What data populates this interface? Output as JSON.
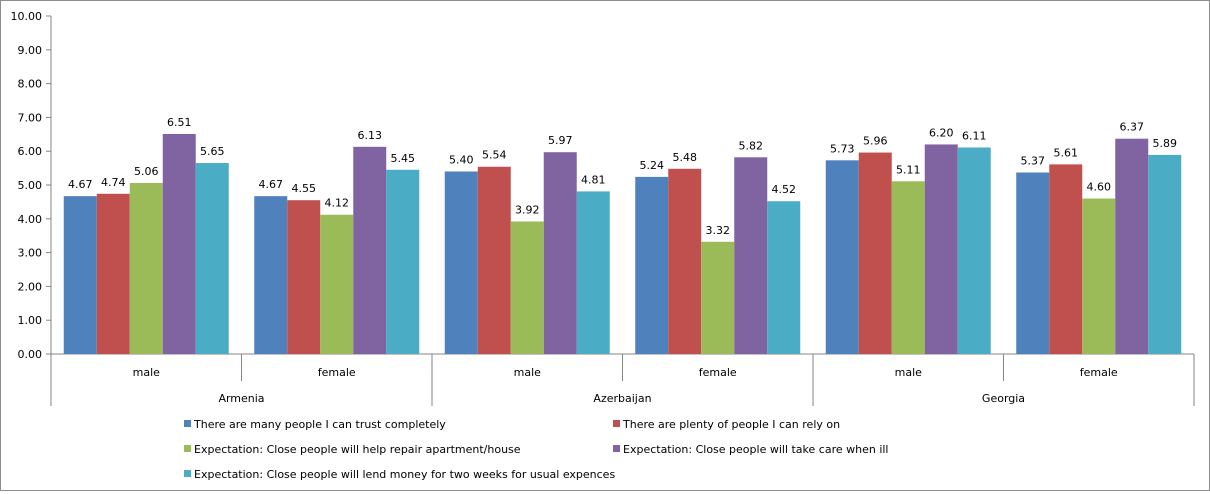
{
  "chart_data": {
    "type": "bar",
    "groups": [
      {
        "name": "Armenia",
        "categories": [
          "male",
          "female"
        ]
      },
      {
        "name": "Azerbaijan",
        "categories": [
          "male",
          "female"
        ]
      },
      {
        "name": "Georgia",
        "categories": [
          "male",
          "female"
        ]
      }
    ],
    "series": [
      {
        "name": "There are many people I can trust completely",
        "color": "#4f81bd",
        "values": [
          4.67,
          4.67,
          5.4,
          5.24,
          5.73,
          5.37
        ]
      },
      {
        "name": "There are plenty of people I can rely on",
        "color": "#c0504d",
        "values": [
          4.74,
          4.55,
          5.54,
          5.48,
          5.96,
          5.61
        ]
      },
      {
        "name": "Expectation: Close people will help repair apartment/house",
        "color": "#9bbb59",
        "values": [
          5.06,
          4.12,
          3.92,
          3.32,
          5.11,
          4.6
        ]
      },
      {
        "name": "Expectation: Close people will take care when ill",
        "color": "#8064a2",
        "values": [
          6.51,
          6.13,
          5.97,
          5.82,
          6.2,
          6.37
        ]
      },
      {
        "name": "Expectation: Close people will lend money for two weeks for usual expences",
        "color": "#4bacc6",
        "values": [
          5.65,
          5.45,
          4.81,
          4.52,
          6.11,
          5.89
        ]
      }
    ],
    "title": "",
    "xlabel": "",
    "ylabel": "",
    "ylim": [
      0,
      10
    ],
    "yticks": [
      "0.00",
      "1.00",
      "2.00",
      "3.00",
      "4.00",
      "5.00",
      "6.00",
      "7.00",
      "8.00",
      "9.00",
      "10.00"
    ],
    "value_format_decimals": 2,
    "grid": false,
    "legend_position": "bottom"
  }
}
